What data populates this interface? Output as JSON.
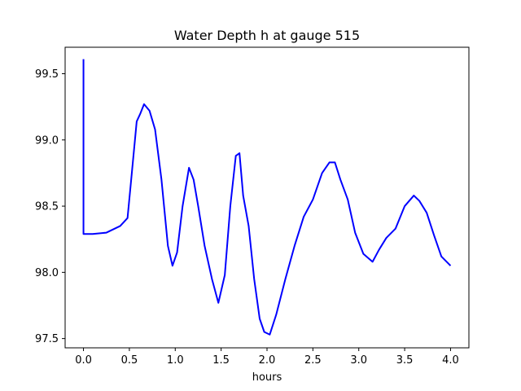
{
  "chart_data": {
    "type": "line",
    "title": "Water Depth h at gauge 515",
    "xlabel": "hours",
    "ylabel": "",
    "xlim": [
      -0.2,
      4.2
    ],
    "ylim": [
      97.43,
      99.7
    ],
    "xticks": [
      "0.0",
      "0.5",
      "1.0",
      "1.5",
      "2.0",
      "2.5",
      "3.0",
      "3.5",
      "4.0"
    ],
    "yticks": [
      "97.5",
      "98.0",
      "98.5",
      "99.0",
      "99.5"
    ],
    "grid": false,
    "legend": "none",
    "series": [
      {
        "color": "#0000ff",
        "x": [
          0.0,
          0.0,
          0.1,
          0.25,
          0.4,
          0.48,
          0.52,
          0.58,
          0.62,
          0.66,
          0.72,
          0.78,
          0.85,
          0.92,
          0.97,
          1.02,
          1.08,
          1.15,
          1.2,
          1.25,
          1.32,
          1.4,
          1.47,
          1.54,
          1.6,
          1.66,
          1.7,
          1.74,
          1.8,
          1.86,
          1.92,
          1.97,
          2.03,
          2.1,
          2.2,
          2.3,
          2.4,
          2.5,
          2.6,
          2.68,
          2.74,
          2.8,
          2.88,
          2.96,
          3.05,
          3.15,
          3.22,
          3.3,
          3.4,
          3.5,
          3.6,
          3.66,
          3.74,
          3.82,
          3.9,
          4.0
        ],
        "y": [
          99.61,
          98.29,
          98.29,
          98.3,
          98.35,
          98.41,
          98.7,
          99.14,
          99.2,
          99.27,
          99.22,
          99.08,
          98.7,
          98.2,
          98.05,
          98.15,
          98.5,
          98.79,
          98.7,
          98.5,
          98.2,
          97.95,
          97.77,
          97.98,
          98.5,
          98.88,
          98.9,
          98.58,
          98.35,
          97.95,
          97.65,
          97.55,
          97.53,
          97.68,
          97.95,
          98.2,
          98.42,
          98.55,
          98.75,
          98.83,
          98.83,
          98.7,
          98.55,
          98.3,
          98.14,
          98.08,
          98.17,
          98.26,
          98.33,
          98.5,
          98.58,
          98.54,
          98.45,
          98.28,
          98.12,
          98.05
        ]
      }
    ]
  }
}
